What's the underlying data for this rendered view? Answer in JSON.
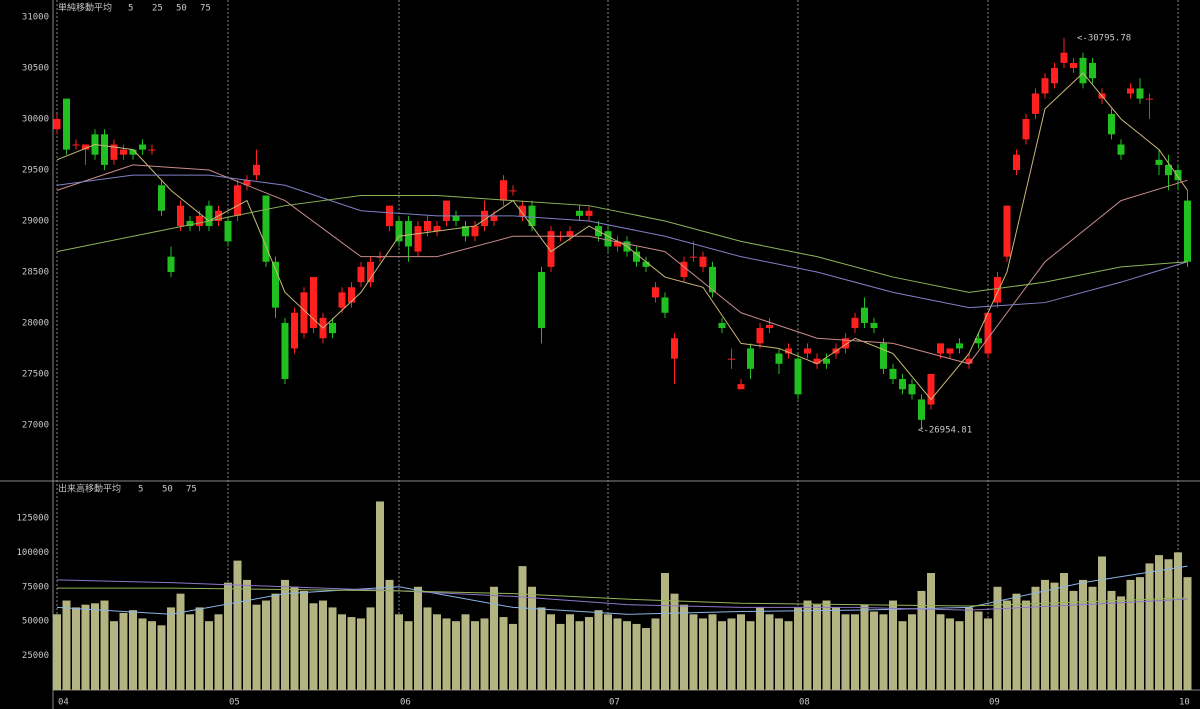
{
  "chart_data": [
    {
      "type": "candlestick",
      "legend_title": "単純移動平均",
      "up_color": "#ff2020",
      "down_color": "#20c020",
      "ylim": [
        26460,
        31167
      ],
      "yticks": [
        27000,
        27500,
        28000,
        28500,
        29000,
        29500,
        30000,
        30500,
        31000
      ],
      "annotations": [
        "<-30795.78",
        "<-26954.81"
      ],
      "ohlc": [
        [
          29900,
          30050,
          29850,
          30000
        ],
        [
          30200,
          30200,
          29650,
          29700
        ],
        [
          29750,
          29800,
          29700,
          29750
        ],
        [
          29700,
          29750,
          29550,
          29750
        ],
        [
          29850,
          29900,
          29600,
          29650
        ],
        [
          29850,
          29900,
          29500,
          29550
        ],
        [
          29600,
          29800,
          29550,
          29750
        ],
        [
          29650,
          29750,
          29600,
          29700
        ],
        [
          29700,
          29700,
          29600,
          29650
        ],
        [
          29750,
          29800,
          29650,
          29700
        ],
        [
          29700,
          29750,
          29650,
          29700
        ],
        [
          29350,
          29400,
          29050,
          29100
        ],
        [
          28650,
          28750,
          28450,
          28500
        ],
        [
          28950,
          29200,
          28900,
          29150
        ],
        [
          29000,
          29050,
          28900,
          28950
        ],
        [
          28950,
          29100,
          28900,
          29050
        ],
        [
          29150,
          29200,
          28900,
          28950
        ],
        [
          29000,
          29150,
          28950,
          29100
        ],
        [
          29000,
          29050,
          28750,
          28800
        ],
        [
          29050,
          29400,
          29000,
          29350
        ],
        [
          29350,
          29450,
          29300,
          29400
        ],
        [
          29450,
          29700,
          29400,
          29550
        ],
        [
          29250,
          29250,
          28550,
          28600
        ],
        [
          28600,
          28650,
          28050,
          28150
        ],
        [
          28000,
          28050,
          27400,
          27450
        ],
        [
          27750,
          28150,
          27700,
          28100
        ],
        [
          27900,
          28350,
          27850,
          28300
        ],
        [
          27950,
          28450,
          27900,
          28450
        ],
        [
          27850,
          28100,
          27800,
          28050
        ],
        [
          28000,
          28050,
          27850,
          27900
        ],
        [
          28150,
          28350,
          28100,
          28300
        ],
        [
          28200,
          28400,
          28150,
          28350
        ],
        [
          28400,
          28600,
          28350,
          28550
        ],
        [
          28400,
          28650,
          28350,
          28600
        ],
        [
          28650,
          28700,
          28600,
          28650
        ],
        [
          28950,
          29150,
          28900,
          29150
        ],
        [
          29000,
          29050,
          28750,
          28800
        ],
        [
          29000,
          29050,
          28600,
          28750
        ],
        [
          28700,
          29000,
          28650,
          28950
        ],
        [
          28900,
          29050,
          28850,
          29000
        ],
        [
          28900,
          29000,
          28850,
          28950
        ],
        [
          29000,
          29200,
          28950,
          29200
        ],
        [
          29050,
          29100,
          28950,
          29000
        ],
        [
          28950,
          29000,
          28800,
          28850
        ],
        [
          28850,
          29000,
          28800,
          28950
        ],
        [
          28950,
          29200,
          28900,
          29100
        ],
        [
          29000,
          29100,
          28950,
          29050
        ],
        [
          29200,
          29450,
          29150,
          29400
        ],
        [
          29300,
          29350,
          29250,
          29300
        ],
        [
          29050,
          29200,
          29000,
          29150
        ],
        [
          29150,
          29200,
          28900,
          28950
        ],
        [
          28500,
          28550,
          27800,
          27950
        ],
        [
          28550,
          28950,
          28500,
          28900
        ],
        [
          28850,
          28900,
          28800,
          28850
        ],
        [
          28850,
          28950,
          28800,
          28900
        ],
        [
          29100,
          29150,
          29000,
          29050
        ],
        [
          29050,
          29150,
          29000,
          29100
        ],
        [
          28950,
          29000,
          28800,
          28850
        ],
        [
          28900,
          28950,
          28700,
          28750
        ],
        [
          28750,
          28850,
          28700,
          28800
        ],
        [
          28800,
          28850,
          28650,
          28700
        ],
        [
          28700,
          28750,
          28550,
          28600
        ],
        [
          28600,
          28650,
          28500,
          28550
        ],
        [
          28250,
          28400,
          28200,
          28350
        ],
        [
          28250,
          28300,
          28050,
          28100
        ],
        [
          27650,
          27900,
          27400,
          27850
        ],
        [
          28450,
          28650,
          28400,
          28600
        ],
        [
          28650,
          28800,
          28600,
          28650
        ],
        [
          28550,
          28700,
          28500,
          28650
        ],
        [
          28550,
          28600,
          28250,
          28300
        ],
        [
          28000,
          28050,
          27900,
          27950
        ],
        [
          27650,
          27750,
          27550,
          27650
        ],
        [
          27350,
          27450,
          27350,
          27400
        ],
        [
          27750,
          27800,
          27450,
          27550
        ],
        [
          27800,
          28000,
          27750,
          27950
        ],
        [
          27950,
          28050,
          27900,
          27980
        ],
        [
          27700,
          27750,
          27500,
          27600
        ],
        [
          27700,
          27800,
          27650,
          27750
        ],
        [
          27650,
          27700,
          27250,
          27300
        ],
        [
          27700,
          27800,
          27650,
          27750
        ],
        [
          27600,
          27700,
          27550,
          27650
        ],
        [
          27650,
          27700,
          27550,
          27600
        ],
        [
          27700,
          27800,
          27650,
          27750
        ],
        [
          27750,
          27900,
          27700,
          27850
        ],
        [
          27950,
          28100,
          27900,
          28050
        ],
        [
          28150,
          28250,
          27950,
          28000
        ],
        [
          28000,
          28050,
          27900,
          27950
        ],
        [
          27800,
          27850,
          27500,
          27550
        ],
        [
          27550,
          27600,
          27400,
          27450
        ],
        [
          27450,
          27500,
          27300,
          27350
        ],
        [
          27400,
          27450,
          27250,
          27300
        ],
        [
          27250,
          27300,
          26954.81,
          27050
        ],
        [
          27200,
          27500,
          27150,
          27500
        ],
        [
          27700,
          27800,
          27650,
          27800
        ],
        [
          27700,
          27750,
          27650,
          27750
        ],
        [
          27800,
          27850,
          27700,
          27750
        ],
        [
          27600,
          27700,
          27550,
          27650
        ],
        [
          27850,
          27900,
          27750,
          27800
        ],
        [
          27700,
          28100,
          27650,
          28100
        ],
        [
          28200,
          28500,
          28150,
          28450
        ],
        [
          28650,
          29150,
          28600,
          29150
        ],
        [
          29500,
          29700,
          29450,
          29650
        ],
        [
          29800,
          30050,
          29750,
          30000
        ],
        [
          30050,
          30300,
          30000,
          30250
        ],
        [
          30250,
          30450,
          30200,
          30400
        ],
        [
          30350,
          30550,
          30300,
          30500
        ],
        [
          30550,
          30795.78,
          30500,
          30650
        ],
        [
          30500,
          30600,
          30450,
          30550
        ],
        [
          30600,
          30650,
          30300,
          30350
        ],
        [
          30550,
          30600,
          30350,
          30400
        ],
        [
          30200,
          30300,
          30150,
          30250
        ],
        [
          30050,
          30100,
          29800,
          29850
        ],
        [
          29750,
          29800,
          29600,
          29650
        ],
        [
          30250,
          30350,
          30200,
          30300
        ],
        [
          30300,
          30400,
          30150,
          30200
        ],
        [
          30200,
          30250,
          30000,
          30200
        ],
        [
          29600,
          29700,
          29450,
          29550
        ],
        [
          29550,
          29650,
          29300,
          29450
        ],
        [
          29500,
          29550,
          29300,
          29400
        ],
        [
          29200,
          29300,
          28550,
          28600
        ]
      ],
      "series": [
        {
          "name": "5",
          "color": "#c8b878",
          "x": [
            0,
            4,
            8,
            12,
            16,
            20,
            24,
            28,
            32,
            36,
            40,
            44,
            48,
            52,
            56,
            60,
            64,
            68,
            72,
            76,
            80,
            84,
            88,
            92,
            96,
            100,
            104,
            108,
            112,
            116,
            119
          ],
          "values": [
            29600,
            29750,
            29700,
            29300,
            29000,
            29200,
            28300,
            27950,
            28300,
            28850,
            28900,
            28950,
            29200,
            28700,
            28950,
            28750,
            28450,
            28350,
            27800,
            27750,
            27600,
            27850,
            27700,
            27250,
            27700,
            28500,
            30100,
            30450,
            30000,
            29700,
            29300
          ]
        },
        {
          "name": "25",
          "color": "#c88c8c",
          "x": [
            0,
            8,
            16,
            24,
            32,
            40,
            48,
            56,
            64,
            72,
            80,
            88,
            96,
            104,
            112,
            119
          ],
          "values": [
            29300,
            29550,
            29500,
            29200,
            28650,
            28650,
            28850,
            28850,
            28700,
            28100,
            27850,
            27800,
            27600,
            28600,
            29200,
            29400
          ]
        },
        {
          "name": "50",
          "color": "#8080c8",
          "x": [
            0,
            8,
            16,
            24,
            32,
            40,
            48,
            56,
            64,
            72,
            80,
            88,
            96,
            104,
            112,
            119
          ],
          "values": [
            29350,
            29450,
            29450,
            29350,
            29100,
            29050,
            29050,
            29000,
            28850,
            28650,
            28500,
            28300,
            28150,
            28200,
            28400,
            28600
          ]
        },
        {
          "name": "75",
          "color": "#8cb45a",
          "x": [
            0,
            8,
            16,
            24,
            32,
            40,
            48,
            56,
            64,
            72,
            80,
            88,
            96,
            104,
            112,
            119
          ],
          "values": [
            28700,
            28850,
            29000,
            29150,
            29250,
            29250,
            29200,
            29150,
            29000,
            28800,
            28650,
            28450,
            28300,
            28400,
            28550,
            28600
          ]
        }
      ]
    },
    {
      "type": "bar",
      "legend_title": "出来高移動平均",
      "color": "#b4b482",
      "ylim": [
        0,
        150400
      ],
      "yticks": [
        25000,
        50000,
        75000,
        100000,
        125000
      ],
      "categories": [
        "04",
        null,
        null,
        null,
        null,
        null,
        null,
        null,
        null,
        null,
        null,
        null,
        null,
        null,
        null,
        null,
        null,
        null,
        "05",
        null,
        null,
        null,
        null,
        null,
        null,
        null,
        null,
        null,
        null,
        null,
        null,
        null,
        null,
        null,
        null,
        null,
        "06",
        null,
        null,
        null,
        null,
        null,
        null,
        null,
        null,
        null,
        null,
        null,
        null,
        null,
        null,
        null,
        null,
        null,
        null,
        null,
        null,
        null,
        "07",
        null,
        null,
        null,
        null,
        null,
        null,
        null,
        null,
        null,
        null,
        null,
        null,
        null,
        null,
        null,
        null,
        null,
        null,
        null,
        "08",
        null,
        null,
        null,
        null,
        null,
        null,
        null,
        null,
        null,
        null,
        null,
        null,
        null,
        null,
        null,
        null,
        null,
        null,
        null,
        "09",
        null,
        null,
        null,
        null,
        null,
        null,
        null,
        null,
        null,
        null,
        null,
        null,
        null,
        null,
        null,
        null,
        null,
        null,
        null,
        "10",
        null
      ],
      "values": [
        55000,
        65000,
        60000,
        62000,
        63000,
        65000,
        50000,
        56000,
        58000,
        52000,
        50000,
        47000,
        60000,
        70000,
        55000,
        60000,
        50000,
        55000,
        78000,
        94000,
        80000,
        62000,
        65000,
        70000,
        80000,
        75000,
        72000,
        63000,
        65000,
        60000,
        55000,
        53000,
        52000,
        60000,
        137000,
        80000,
        55000,
        50000,
        75000,
        60000,
        55000,
        52000,
        50000,
        55000,
        50000,
        52000,
        75000,
        53000,
        48000,
        90000,
        75000,
        60000,
        55000,
        48000,
        55000,
        50000,
        53000,
        58000,
        55000,
        52000,
        50000,
        48000,
        45000,
        52000,
        85000,
        70000,
        62000,
        55000,
        52000,
        55000,
        50000,
        52000,
        55000,
        50000,
        60000,
        55000,
        52000,
        50000,
        60000,
        65000,
        62000,
        65000,
        60000,
        55000,
        55000,
        62000,
        57000,
        55000,
        65000,
        50000,
        55000,
        72000,
        85000,
        55000,
        52000,
        50000,
        60000,
        57000,
        52000,
        75000,
        65000,
        70000,
        65000,
        75000,
        80000,
        78000,
        85000,
        72000,
        80000,
        75000,
        97000,
        72000,
        68000,
        80000,
        82000,
        92000,
        98000,
        95000,
        100000,
        82000
      ],
      "series": [
        {
          "name": "5",
          "color": "#8cb4e6",
          "x": [
            0,
            12,
            24,
            36,
            48,
            60,
            72,
            84,
            96,
            108,
            119
          ],
          "values": [
            60000,
            55000,
            70000,
            75000,
            60000,
            55000,
            57000,
            58000,
            60000,
            78000,
            90000
          ]
        },
        {
          "name": "50",
          "color": "#8c78c8",
          "x": [
            0,
            12,
            24,
            36,
            48,
            60,
            72,
            84,
            96,
            108,
            119
          ],
          "values": [
            80000,
            78000,
            75000,
            72000,
            68000,
            62000,
            60000,
            60000,
            58000,
            62000,
            66000
          ]
        },
        {
          "name": "75",
          "color": "#96b45a",
          "x": [
            0,
            12,
            24,
            36,
            48,
            60,
            72,
            84,
            96,
            108,
            119
          ],
          "values": [
            74000,
            74000,
            73000,
            72000,
            70000,
            66000,
            63000,
            62000,
            61000,
            64000,
            67000
          ]
        }
      ]
    }
  ]
}
